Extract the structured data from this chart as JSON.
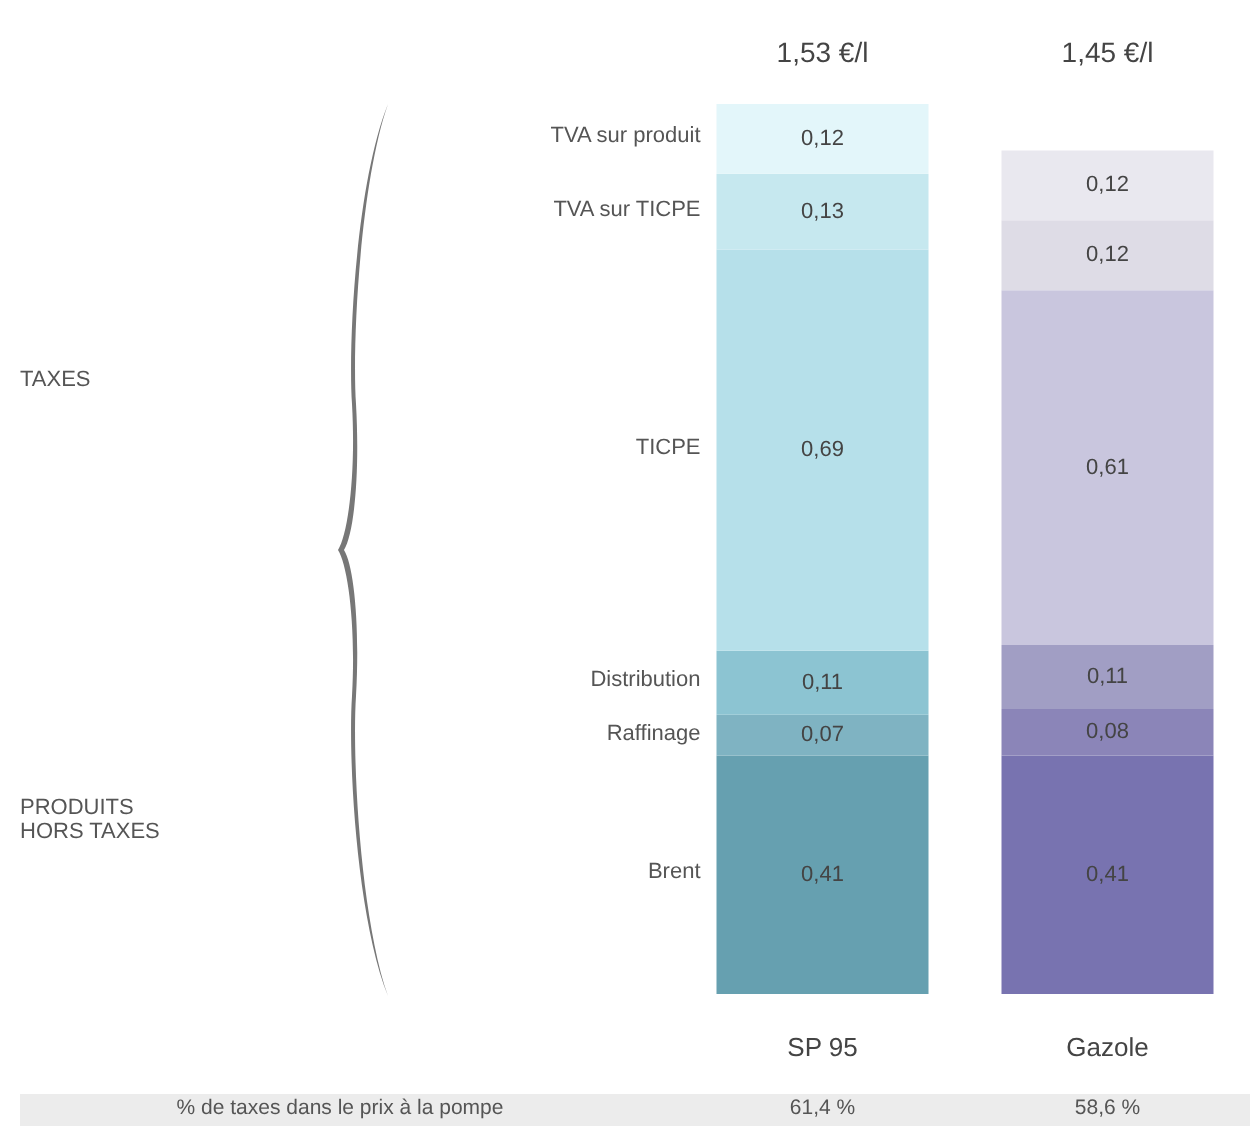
{
  "chart_data": {
    "type": "bar",
    "stacked": true,
    "categories": [
      "SP 95",
      "Gazole"
    ],
    "series": [
      {
        "name": "Brent",
        "colors": [
          "#66a0b0",
          "#7873b0"
        ],
        "values": [
          0.41,
          0.41
        ],
        "value_labels": [
          "0,41",
          "0,41"
        ]
      },
      {
        "name": "Raffinage",
        "colors": [
          "#7fb3c2",
          "#8b85b8"
        ],
        "values": [
          0.07,
          0.08
        ],
        "value_labels": [
          "0,07",
          "0,08"
        ]
      },
      {
        "name": "Distribution",
        "colors": [
          "#8cc4d2",
          "#a19ec4"
        ],
        "values": [
          0.11,
          0.11
        ],
        "value_labels": [
          "0,11",
          "0,11"
        ]
      },
      {
        "name": "TICPE",
        "colors": [
          "#b6e0ea",
          "#c9c6de"
        ],
        "values": [
          0.69,
          0.61
        ],
        "value_labels": [
          "0,69",
          "0,61"
        ]
      },
      {
        "name": "TVA sur TICPE",
        "colors": [
          "#c6e8ef",
          "#dedce6"
        ],
        "values": [
          0.13,
          0.12
        ],
        "value_labels": [
          "0,13",
          "0,12"
        ]
      },
      {
        "name": "TVA sur produit",
        "colors": [
          "#e3f6fa",
          "#e9e8ef"
        ],
        "values": [
          0.12,
          0.12
        ],
        "value_labels": [
          "0,12",
          "0,12"
        ]
      }
    ],
    "totals": [
      "1,53 €/l",
      "1,45 €/l"
    ],
    "annotations": [
      "TAXES",
      "PRODUITS HORS TAXES",
      "% de taxes dans le prix à la pompe",
      "61,4 %",
      "58,6 %"
    ],
    "legend": false
  }
}
